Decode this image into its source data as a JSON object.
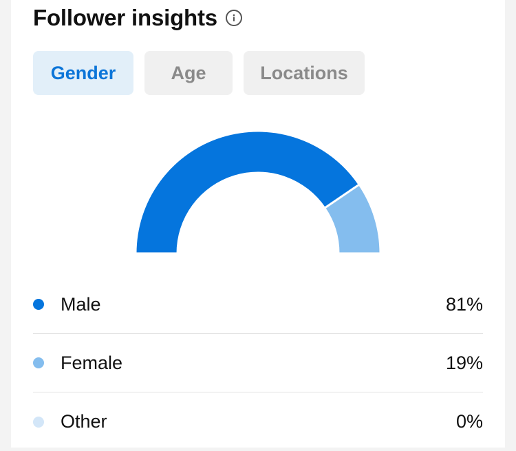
{
  "header": {
    "title": "Follower insights",
    "info_icon": "info-icon"
  },
  "tabs": [
    {
      "label": "Gender",
      "active": true
    },
    {
      "label": "Age",
      "active": false
    },
    {
      "label": "Locations",
      "active": false
    }
  ],
  "colors": {
    "male": "#0575dd",
    "female": "#84bdee",
    "other": "#d3e6f8",
    "active_tab_bg": "#e2eff9",
    "active_tab_text": "#0c75d8"
  },
  "chart_data": {
    "type": "pie",
    "variant": "half-donut",
    "categories": [
      "Male",
      "Female",
      "Other"
    ],
    "values": [
      81,
      19,
      0
    ],
    "unit": "%"
  },
  "legend": [
    {
      "label": "Male",
      "value": "81%",
      "color": "#0575dd"
    },
    {
      "label": "Female",
      "value": "19%",
      "color": "#84bdee"
    },
    {
      "label": "Other",
      "value": "0%",
      "color": "#d3e6f8"
    }
  ]
}
